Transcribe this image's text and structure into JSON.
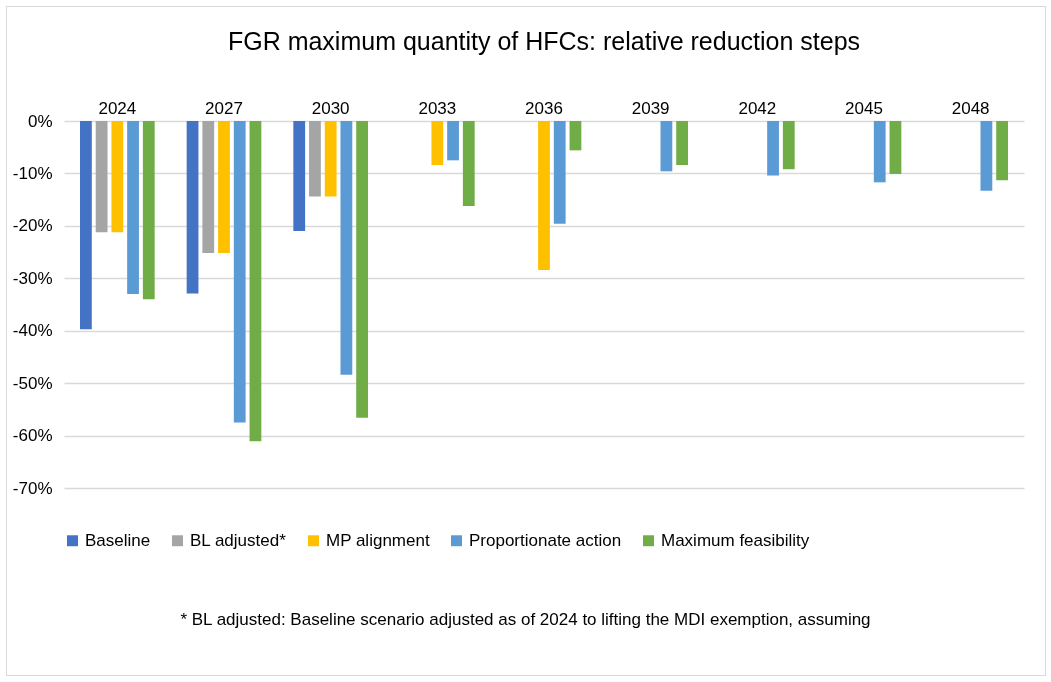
{
  "chart_data": {
    "type": "bar",
    "title": "FGR maximum quantity of HFCs: relative reduction steps",
    "categories": [
      "2024",
      "2027",
      "2030",
      "2033",
      "2036",
      "2039",
      "2042",
      "2045",
      "2048"
    ],
    "series": [
      {
        "name": "Baseline",
        "color": "#4472c4",
        "values": [
          -39.7,
          -32.9,
          -21.0,
          null,
          null,
          null,
          null,
          null,
          null
        ]
      },
      {
        "name": "BL adjusted*",
        "color": "#a5a5a5",
        "values": [
          -21.2,
          -25.2,
          -14.4,
          null,
          null,
          null,
          null,
          null,
          null
        ]
      },
      {
        "name": "MP alignment",
        "color": "#ffc000",
        "values": [
          -21.2,
          -25.2,
          -14.4,
          -8.4,
          -28.4,
          null,
          null,
          null,
          null
        ]
      },
      {
        "name": "Proportionate action",
        "color": "#5b9bd5",
        "values": [
          -33.0,
          -57.5,
          -48.4,
          -7.5,
          -19.6,
          -9.6,
          -10.4,
          -11.7,
          -13.3
        ]
      },
      {
        "name": "Maximum feasibility",
        "color": "#70ad47",
        "values": [
          -34.0,
          -61.1,
          -56.6,
          -16.2,
          -5.6,
          -8.4,
          -9.2,
          -10.1,
          -11.3
        ]
      }
    ],
    "ylim": [
      -70,
      0
    ],
    "yticks": [
      {
        "value": 0,
        "label": "0%"
      },
      {
        "value": -10,
        "label": "-10%"
      },
      {
        "value": -20,
        "label": "-20%"
      },
      {
        "value": -30,
        "label": "-30%"
      },
      {
        "value": -40,
        "label": "-40%"
      },
      {
        "value": -50,
        "label": "-50%"
      },
      {
        "value": -60,
        "label": "-60%"
      },
      {
        "value": -70,
        "label": "-70%"
      }
    ],
    "grid": "y",
    "legend": "bottom",
    "annotations": [
      "* BL adjusted: Baseline scenario adjusted as of 2024 to lifting the MDI exemption, assuming"
    ]
  }
}
